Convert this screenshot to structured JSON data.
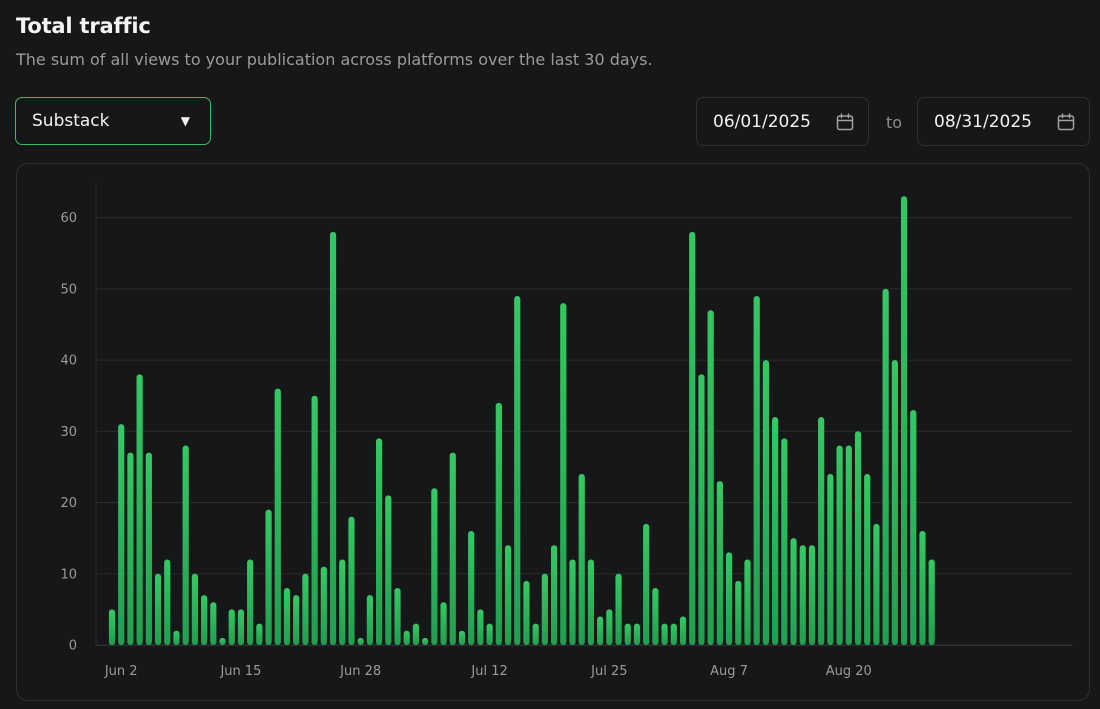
{
  "header": {
    "title": "Total traffic",
    "subtitle": "The sum of all views to your publication across platforms over the last 30 days."
  },
  "filters": {
    "platform": "Substack",
    "start_date": "06/01/2025",
    "to_label": "to",
    "end_date": "08/31/2025"
  },
  "icons": {
    "platform_caret": "caret-down-icon",
    "calendar": "calendar-icon"
  },
  "colors": {
    "bar": "#2fbf5f",
    "accent": "#3fb867",
    "grid": "#2a2c2e"
  },
  "chart_data": {
    "type": "bar",
    "title": "",
    "xlabel": "",
    "ylabel": "",
    "ylim": [
      0,
      65
    ],
    "yticks": [
      0,
      10,
      20,
      30,
      40,
      50,
      60
    ],
    "grid": true,
    "x_start": "2025-06-01",
    "x_tick_labels": [
      {
        "index": 1,
        "label": "Jun 2"
      },
      {
        "index": 14,
        "label": "Jun 15"
      },
      {
        "index": 27,
        "label": "Jun 28"
      },
      {
        "index": 41,
        "label": "Jul 12"
      },
      {
        "index": 54,
        "label": "Jul 25"
      },
      {
        "index": 67,
        "label": "Aug 7"
      },
      {
        "index": 80,
        "label": "Aug 20"
      }
    ],
    "values": [
      5,
      31,
      27,
      38,
      27,
      10,
      12,
      2,
      28,
      10,
      7,
      6,
      1,
      5,
      5,
      12,
      3,
      19,
      36,
      8,
      7,
      10,
      35,
      11,
      58,
      12,
      18,
      1,
      7,
      29,
      21,
      8,
      2,
      3,
      1,
      22,
      6,
      27,
      2,
      16,
      5,
      3,
      34,
      14,
      49,
      9,
      3,
      10,
      14,
      48,
      12,
      24,
      12,
      4,
      5,
      10,
      3,
      3,
      17,
      8,
      3,
      3,
      4,
      58,
      38,
      47,
      23,
      13,
      9,
      12,
      49,
      40,
      32,
      29,
      15,
      14,
      14,
      32,
      24,
      28,
      28,
      30,
      24,
      17,
      50,
      40,
      63,
      33,
      16,
      12
    ]
  }
}
